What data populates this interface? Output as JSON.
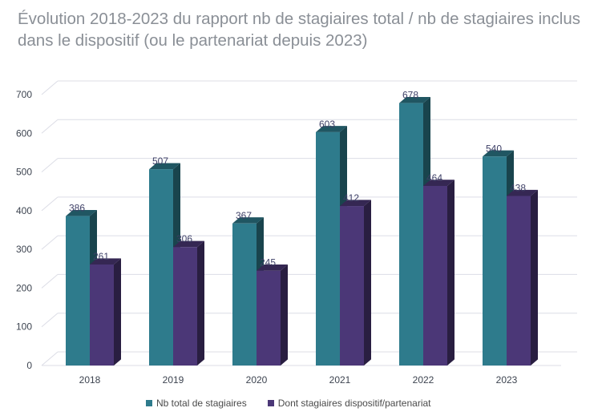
{
  "chart_data": {
    "type": "bar",
    "title": "Évolution 2018-2023 du rapport nb de stagiaires total / nb de stagiaires inclus dans le dispositif (ou le partenariat depuis 2023)",
    "categories": [
      "2018",
      "2019",
      "2020",
      "2021",
      "2022",
      "2023"
    ],
    "series": [
      {
        "name": "Nb total de stagiaires",
        "values": [
          386,
          507,
          367,
          603,
          678,
          540
        ],
        "color": "#2e7b8c"
      },
      {
        "name": "Dont stagiaires dispositif/partenariat",
        "values": [
          261,
          306,
          245,
          412,
          464,
          438
        ],
        "color": "#4b3777"
      }
    ],
    "yticks": [
      "0",
      "100",
      "200",
      "300",
      "400",
      "500",
      "600",
      "700"
    ],
    "ylim": [
      0,
      700
    ],
    "grid": true,
    "legend_position": "bottom",
    "style": "3d-column"
  }
}
